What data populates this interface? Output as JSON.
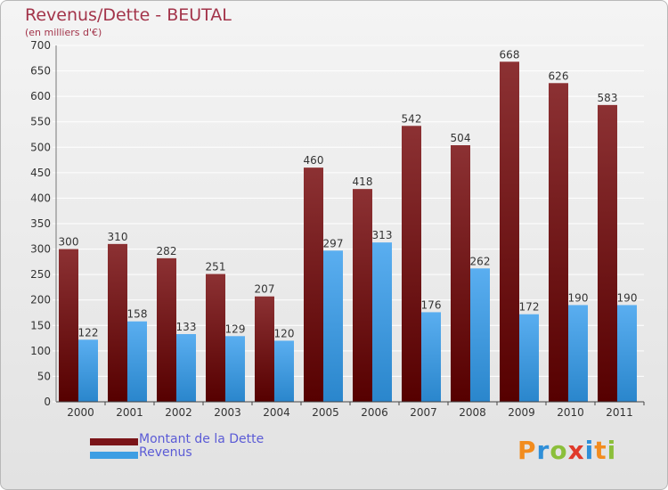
{
  "title": "Revenus/Dette - BEUTAL",
  "subtitle": "(en milliers d'€)",
  "logo": [
    "P",
    "r",
    "o",
    "x",
    "i",
    "t",
    "i"
  ],
  "logo_colors": [
    "#f28c1e",
    "#2f8fd8",
    "#8bbf3a",
    "#e03a2a",
    "#2f8fd8",
    "#f28c1e",
    "#8bbf3a"
  ],
  "chart_data": {
    "type": "bar",
    "categories": [
      "2000",
      "2001",
      "2002",
      "2003",
      "2004",
      "2005",
      "2006",
      "2007",
      "2008",
      "2009",
      "2010",
      "2011"
    ],
    "series": [
      {
        "name": "Montant de la Dette",
        "color": "#7a1418",
        "values": [
          300,
          310,
          282,
          251,
          207,
          460,
          418,
          542,
          504,
          668,
          626,
          583
        ]
      },
      {
        "name": "Revenus",
        "color": "#3d9ee3",
        "values": [
          122,
          158,
          133,
          129,
          120,
          297,
          313,
          176,
          262,
          172,
          190,
          190
        ]
      }
    ],
    "ylim": [
      0,
      700
    ],
    "yticks": [
      0,
      50,
      100,
      150,
      200,
      250,
      300,
      350,
      400,
      450,
      500,
      550,
      600,
      650,
      700
    ],
    "grid": true,
    "legend": "bottom-left"
  }
}
